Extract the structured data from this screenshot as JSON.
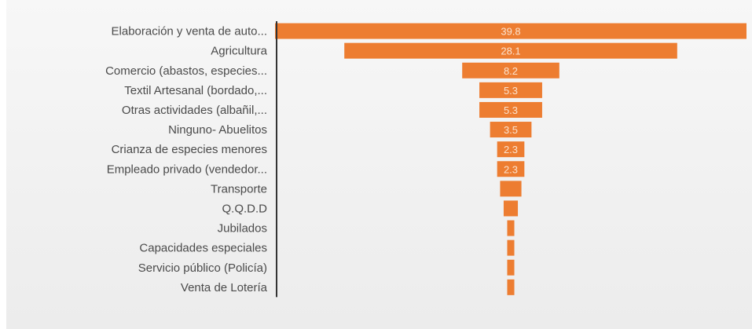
{
  "chart_data": {
    "type": "bar",
    "orientation": "horizontal",
    "layout": "funnel",
    "categories": [
      "Elaboración y venta de auto...",
      "Agricultura",
      "Comercio (abastos, especies...",
      "Textil Artesanal (bordado,...",
      "Otras actividades (albañil,...",
      "Ninguno- Abuelitos",
      "Crianza de especies menores",
      "Empleado privado (vendedor...",
      "Transporte",
      "Q.Q.D.D",
      "Jubilados",
      "Capacidades especiales",
      "Servicio público (Policía)",
      "Venta de Lotería"
    ],
    "values": [
      39.8,
      28.1,
      8.2,
      5.3,
      5.3,
      3.5,
      2.3,
      2.3,
      1.8,
      1.2,
      0.6,
      0.6,
      0.6,
      0.6
    ],
    "data_labels": [
      "39.8",
      "28.1",
      "8.2",
      "5.3",
      "5.3",
      "3.5",
      "2.3",
      "2.3",
      "",
      "",
      "",
      "",
      "",
      ""
    ],
    "xlim": [
      0,
      39.8
    ],
    "bar_color": "#ed7d31",
    "axis_color": "#333333",
    "legend": "none",
    "grid": false
  }
}
